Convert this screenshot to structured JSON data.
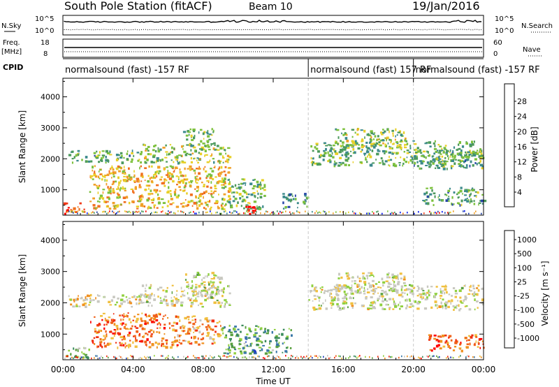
{
  "header": {
    "station": "South Pole Station (fitACF)",
    "beam": "Beam 10",
    "date": "19/Jan/2016"
  },
  "top_panels": {
    "nsky": {
      "label": "N.Sky",
      "ticks": [
        "10^5",
        "10^0"
      ]
    },
    "nsearch": {
      "label": "N.Search",
      "ticks": [
        "10^5",
        "10^0"
      ]
    },
    "freq": {
      "label_line1": "Freq.",
      "label_line2": "[MHz]",
      "ticks": [
        "18",
        "8"
      ]
    },
    "nave": {
      "label": "Nave",
      "ticks": [
        "60",
        "0"
      ]
    },
    "cpid": {
      "label": "CPID",
      "segments": [
        {
          "text": "normalsound (fast) -157 RF",
          "start_hour": 0
        },
        {
          "text": "normalsound (fast) 157 RF",
          "start_hour": 14.0
        },
        {
          "text": "normalsound (fast) -157 RF",
          "start_hour": 20.0
        }
      ]
    }
  },
  "chart_data": [
    {
      "type": "heatmap",
      "name": "power",
      "ylabel": "Slant Range [km]",
      "ylim": [
        180,
        4600
      ],
      "yticks": [
        1000,
        2000,
        3000,
        4000
      ],
      "xlim": [
        0,
        24
      ],
      "colorbar": {
        "label": "Power [dB]",
        "ticks": [
          "4",
          "8",
          "12",
          "16",
          "20",
          "24",
          "28"
        ],
        "colors": [
          "#0a1cf0",
          "#2846a8",
          "#3c8a8c",
          "#4c9a5c",
          "#7cc03c",
          "#e8d028",
          "#f0a028",
          "#f07020",
          "#f03818",
          "#ff0000"
        ]
      },
      "regions": [
        {
          "t0": 0.3,
          "t1": 4.5,
          "r0": 1900,
          "r1": 2300,
          "level": 0.35
        },
        {
          "t0": 4.5,
          "t1": 9.5,
          "r0": 1900,
          "r1": 2500,
          "level": 0.45
        },
        {
          "t0": 6.8,
          "t1": 8.6,
          "r0": 2300,
          "r1": 3000,
          "level": 0.4
        },
        {
          "t0": 1.5,
          "t1": 9.5,
          "r0": 400,
          "r1": 1800,
          "level": 0.6
        },
        {
          "t0": 9.0,
          "t1": 11.5,
          "r0": 400,
          "r1": 1400,
          "level": 0.4
        },
        {
          "t0": 10.3,
          "t1": 11.0,
          "r0": 250,
          "r1": 500,
          "level": 1.0
        },
        {
          "t0": 0.0,
          "t1": 1.2,
          "r0": 250,
          "r1": 600,
          "level": 0.75
        },
        {
          "t0": 12.5,
          "t1": 14.0,
          "r0": 400,
          "r1": 900,
          "level": 0.3
        },
        {
          "t0": 14.0,
          "t1": 24.0,
          "r0": 1800,
          "r1": 2600,
          "level": 0.4
        },
        {
          "t0": 15.5,
          "t1": 19.5,
          "r0": 2400,
          "r1": 3000,
          "level": 0.45
        },
        {
          "t0": 20.0,
          "t1": 24.0,
          "r0": 1700,
          "r1": 2300,
          "level": 0.35
        },
        {
          "t0": 20.5,
          "t1": 24.0,
          "r0": 500,
          "r1": 1100,
          "level": 0.35
        }
      ]
    },
    {
      "type": "heatmap",
      "name": "velocity",
      "ylabel": "Slant Range [km]",
      "xlabel": "Time UT",
      "ylim": [
        180,
        4600
      ],
      "yticks": [
        1000,
        2000,
        3000,
        4000
      ],
      "xlim": [
        0,
        24
      ],
      "xticks": [
        "00:00",
        "04:00",
        "08:00",
        "12:00",
        "16:00",
        "20:00",
        "00:00"
      ],
      "colorbar": {
        "label": "Velocity [m s⁻¹]",
        "ticks": [
          "1000",
          "500",
          "100",
          "25",
          "-25",
          "-100",
          "-500",
          "-1000"
        ],
        "colors": [
          "#2040c0",
          "#3a78a8",
          "#3c8c5c",
          "#5aa040",
          "#90d040",
          "#c8c8c0",
          "#c8c8c0",
          "#f0c040",
          "#f09020",
          "#f06018",
          "#f03010",
          "#ff0000"
        ]
      },
      "regions": [
        {
          "t0": 0.3,
          "t1": 4.5,
          "r0": 1900,
          "r1": 2300,
          "level": 0.55
        },
        {
          "t0": 4.5,
          "t1": 9.5,
          "r0": 1900,
          "r1": 2600,
          "level": 0.5
        },
        {
          "t0": 6.8,
          "t1": 9.0,
          "r0": 2300,
          "r1": 3000,
          "level": 0.48
        },
        {
          "t0": 1.5,
          "t1": 6.5,
          "r0": 600,
          "r1": 1700,
          "level": 0.78
        },
        {
          "t0": 6.5,
          "t1": 9.0,
          "r0": 700,
          "r1": 1600,
          "level": 0.7
        },
        {
          "t0": 9.0,
          "t1": 13.0,
          "r0": 400,
          "r1": 1300,
          "level": 0.25
        },
        {
          "t0": 0.0,
          "t1": 1.5,
          "r0": 250,
          "r1": 600,
          "level": 0.35
        },
        {
          "t0": 14.0,
          "t1": 24.0,
          "r0": 1800,
          "r1": 2600,
          "level": 0.5
        },
        {
          "t0": 15.5,
          "t1": 19.5,
          "r0": 2400,
          "r1": 3000,
          "level": 0.5
        },
        {
          "t0": 20.8,
          "t1": 24.0,
          "r0": 500,
          "r1": 1000,
          "level": 0.8
        }
      ]
    }
  ]
}
